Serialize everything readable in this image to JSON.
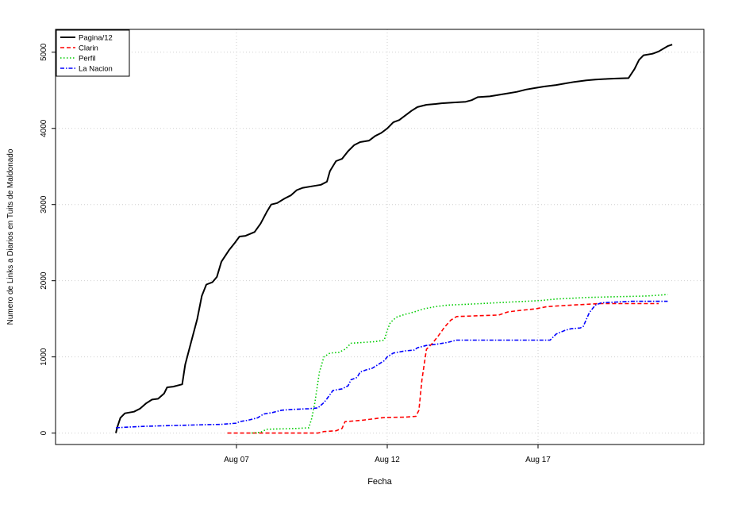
{
  "chart_data": {
    "type": "line",
    "title": "",
    "xlabel": "Fecha",
    "ylabel": "Numero de Links a Diarios en Tuits de Maldonado",
    "x_unit": "day of August 2017",
    "xlim": [
      1.0,
      22.5
    ],
    "ylim": [
      -150,
      5300
    ],
    "x_ticks": [
      {
        "value": 7,
        "label": "Aug 07"
      },
      {
        "value": 12,
        "label": "Aug 12"
      },
      {
        "value": 17,
        "label": "Aug 17"
      }
    ],
    "y_ticks": [
      {
        "value": 0,
        "label": "0"
      },
      {
        "value": 1000,
        "label": "1000"
      },
      {
        "value": 2000,
        "label": "2000"
      },
      {
        "value": 3000,
        "label": "3000"
      },
      {
        "value": 4000,
        "label": "4000"
      },
      {
        "value": 5000,
        "label": "5000"
      }
    ],
    "grid": true,
    "legend_position": "top-left",
    "series": [
      {
        "name": "Pagina/12",
        "color": "#000000",
        "dash": "solid",
        "points": [
          [
            3.0,
            0
          ],
          [
            3.05,
            80
          ],
          [
            3.15,
            200
          ],
          [
            3.3,
            260
          ],
          [
            3.6,
            280
          ],
          [
            3.8,
            320
          ],
          [
            4.0,
            390
          ],
          [
            4.2,
            440
          ],
          [
            4.4,
            450
          ],
          [
            4.6,
            520
          ],
          [
            4.7,
            600
          ],
          [
            4.9,
            610
          ],
          [
            5.2,
            640
          ],
          [
            5.3,
            900
          ],
          [
            5.5,
            1200
          ],
          [
            5.7,
            1500
          ],
          [
            5.85,
            1800
          ],
          [
            6.0,
            1950
          ],
          [
            6.2,
            1980
          ],
          [
            6.35,
            2050
          ],
          [
            6.5,
            2250
          ],
          [
            6.75,
            2400
          ],
          [
            6.95,
            2500
          ],
          [
            7.1,
            2580
          ],
          [
            7.3,
            2590
          ],
          [
            7.6,
            2640
          ],
          [
            7.8,
            2750
          ],
          [
            8.0,
            2900
          ],
          [
            8.15,
            3000
          ],
          [
            8.35,
            3020
          ],
          [
            8.6,
            3080
          ],
          [
            8.8,
            3120
          ],
          [
            9.0,
            3190
          ],
          [
            9.2,
            3220
          ],
          [
            9.5,
            3240
          ],
          [
            9.8,
            3260
          ],
          [
            10.0,
            3300
          ],
          [
            10.1,
            3440
          ],
          [
            10.3,
            3570
          ],
          [
            10.5,
            3600
          ],
          [
            10.7,
            3700
          ],
          [
            10.9,
            3780
          ],
          [
            11.1,
            3820
          ],
          [
            11.4,
            3840
          ],
          [
            11.6,
            3900
          ],
          [
            11.8,
            3940
          ],
          [
            12.0,
            4000
          ],
          [
            12.2,
            4080
          ],
          [
            12.4,
            4110
          ],
          [
            12.6,
            4170
          ],
          [
            12.8,
            4230
          ],
          [
            13.0,
            4280
          ],
          [
            13.3,
            4310
          ],
          [
            13.6,
            4320
          ],
          [
            13.8,
            4330
          ],
          [
            14.2,
            4340
          ],
          [
            14.6,
            4350
          ],
          [
            14.8,
            4370
          ],
          [
            15.0,
            4410
          ],
          [
            15.4,
            4420
          ],
          [
            15.7,
            4440
          ],
          [
            16.0,
            4460
          ],
          [
            16.3,
            4480
          ],
          [
            16.6,
            4510
          ],
          [
            16.9,
            4530
          ],
          [
            17.2,
            4550
          ],
          [
            17.6,
            4570
          ],
          [
            17.9,
            4590
          ],
          [
            18.2,
            4610
          ],
          [
            18.6,
            4630
          ],
          [
            18.9,
            4640
          ],
          [
            19.3,
            4650
          ],
          [
            19.6,
            4655
          ],
          [
            20.0,
            4660
          ],
          [
            20.2,
            4780
          ],
          [
            20.35,
            4900
          ],
          [
            20.5,
            4960
          ],
          [
            20.8,
            4980
          ],
          [
            21.0,
            5010
          ],
          [
            21.3,
            5080
          ],
          [
            21.45,
            5100
          ]
        ]
      },
      {
        "name": "Clarin",
        "color": "#ff0000",
        "dash": "dashed",
        "points": [
          [
            6.7,
            0
          ],
          [
            9.7,
            0
          ],
          [
            9.9,
            20
          ],
          [
            10.3,
            30
          ],
          [
            10.5,
            60
          ],
          [
            10.6,
            150
          ],
          [
            10.9,
            160
          ],
          [
            11.2,
            170
          ],
          [
            11.6,
            190
          ],
          [
            11.8,
            200
          ],
          [
            12.0,
            205
          ],
          [
            12.6,
            210
          ],
          [
            12.95,
            220
          ],
          [
            13.05,
            300
          ],
          [
            13.15,
            700
          ],
          [
            13.3,
            1100
          ],
          [
            13.5,
            1180
          ],
          [
            13.7,
            1280
          ],
          [
            13.9,
            1390
          ],
          [
            14.1,
            1480
          ],
          [
            14.3,
            1530
          ],
          [
            15.0,
            1540
          ],
          [
            15.7,
            1550
          ],
          [
            16.0,
            1590
          ],
          [
            16.4,
            1610
          ],
          [
            16.9,
            1630
          ],
          [
            17.3,
            1660
          ],
          [
            17.7,
            1670
          ],
          [
            18.1,
            1680
          ],
          [
            18.6,
            1690
          ],
          [
            19.0,
            1700
          ],
          [
            19.5,
            1700
          ],
          [
            20.0,
            1700
          ],
          [
            20.7,
            1700
          ],
          [
            21.0,
            1700
          ]
        ]
      },
      {
        "name": "Perfil",
        "color": "#00cc00",
        "dash": "dotted",
        "points": [
          [
            7.5,
            0
          ],
          [
            7.8,
            10
          ],
          [
            8.0,
            50
          ],
          [
            8.5,
            55
          ],
          [
            9.0,
            60
          ],
          [
            9.4,
            70
          ],
          [
            9.5,
            200
          ],
          [
            9.6,
            400
          ],
          [
            9.75,
            800
          ],
          [
            9.9,
            1000
          ],
          [
            10.1,
            1050
          ],
          [
            10.4,
            1060
          ],
          [
            10.6,
            1100
          ],
          [
            10.8,
            1180
          ],
          [
            11.2,
            1190
          ],
          [
            11.6,
            1200
          ],
          [
            11.9,
            1220
          ],
          [
            12.0,
            1350
          ],
          [
            12.1,
            1450
          ],
          [
            12.3,
            1520
          ],
          [
            12.6,
            1560
          ],
          [
            12.9,
            1590
          ],
          [
            13.2,
            1630
          ],
          [
            13.6,
            1660
          ],
          [
            14.0,
            1680
          ],
          [
            14.6,
            1690
          ],
          [
            15.1,
            1700
          ],
          [
            15.6,
            1710
          ],
          [
            16.1,
            1720
          ],
          [
            16.6,
            1730
          ],
          [
            17.1,
            1740
          ],
          [
            17.6,
            1760
          ],
          [
            18.1,
            1770
          ],
          [
            18.6,
            1780
          ],
          [
            19.1,
            1785
          ],
          [
            19.6,
            1790
          ],
          [
            20.1,
            1795
          ],
          [
            20.6,
            1800
          ],
          [
            21.0,
            1810
          ],
          [
            21.3,
            1820
          ]
        ]
      },
      {
        "name": "La Nacion",
        "color": "#0000ff",
        "dash": "dashdot",
        "points": [
          [
            3.0,
            70
          ],
          [
            3.5,
            80
          ],
          [
            4.0,
            90
          ],
          [
            4.5,
            95
          ],
          [
            5.0,
            100
          ],
          [
            5.5,
            105
          ],
          [
            6.0,
            110
          ],
          [
            6.5,
            115
          ],
          [
            7.0,
            130
          ],
          [
            7.1,
            150
          ],
          [
            7.4,
            170
          ],
          [
            7.7,
            200
          ],
          [
            7.9,
            250
          ],
          [
            8.2,
            270
          ],
          [
            8.5,
            300
          ],
          [
            8.8,
            310
          ],
          [
            9.1,
            315
          ],
          [
            9.4,
            320
          ],
          [
            9.7,
            330
          ],
          [
            9.9,
            400
          ],
          [
            10.0,
            450
          ],
          [
            10.2,
            560
          ],
          [
            10.5,
            580
          ],
          [
            10.7,
            620
          ],
          [
            10.8,
            700
          ],
          [
            11.0,
            730
          ],
          [
            11.1,
            800
          ],
          [
            11.3,
            830
          ],
          [
            11.5,
            850
          ],
          [
            11.7,
            900
          ],
          [
            11.9,
            950
          ],
          [
            12.0,
            1000
          ],
          [
            12.2,
            1050
          ],
          [
            12.6,
            1080
          ],
          [
            12.9,
            1090
          ],
          [
            13.0,
            1120
          ],
          [
            13.3,
            1150
          ],
          [
            13.7,
            1170
          ],
          [
            14.0,
            1190
          ],
          [
            14.3,
            1220
          ],
          [
            15.1,
            1220
          ],
          [
            15.6,
            1220
          ],
          [
            16.1,
            1220
          ],
          [
            16.6,
            1220
          ],
          [
            17.0,
            1220
          ],
          [
            17.4,
            1220
          ],
          [
            17.6,
            1300
          ],
          [
            17.9,
            1350
          ],
          [
            18.1,
            1370
          ],
          [
            18.4,
            1380
          ],
          [
            18.5,
            1400
          ],
          [
            18.7,
            1580
          ],
          [
            18.9,
            1680
          ],
          [
            19.1,
            1710
          ],
          [
            19.6,
            1720
          ],
          [
            20.1,
            1730
          ],
          [
            20.6,
            1730
          ],
          [
            21.0,
            1730
          ],
          [
            21.3,
            1730
          ]
        ]
      }
    ]
  }
}
